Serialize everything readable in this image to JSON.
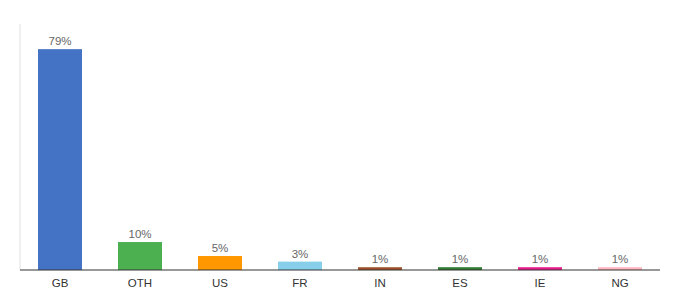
{
  "chart_data": {
    "type": "bar",
    "categories": [
      "GB",
      "OTH",
      "US",
      "FR",
      "IN",
      "ES",
      "IE",
      "NG"
    ],
    "values": [
      79,
      10,
      5,
      3,
      1,
      1,
      1,
      1
    ],
    "value_labels": [
      "79%",
      "10%",
      "5%",
      "3%",
      "1%",
      "1%",
      "1%",
      "1%"
    ],
    "colors": [
      "#4472C4",
      "#4CAF50",
      "#FF9800",
      "#87CEEB",
      "#A0522D",
      "#2E7D32",
      "#E91E8C",
      "#FFB6C1"
    ],
    "ylim": [
      0,
      88
    ],
    "data_labels": true,
    "tick_labels": "x"
  }
}
